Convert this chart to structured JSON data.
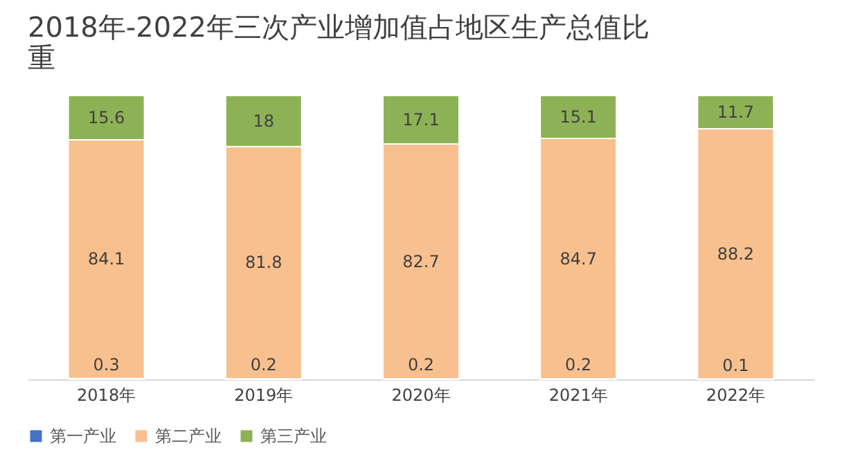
{
  "chart_data": {
    "type": "bar",
    "title": "2018年-2022年三次产业增加值占地区生产总值比重",
    "categories": [
      "2018年",
      "2019年",
      "2020年",
      "2021年",
      "2022年"
    ],
    "series": [
      {
        "name": "第一产业",
        "color": "#4472c4",
        "values": [
          0.3,
          0.2,
          0.2,
          0.2,
          0.1
        ]
      },
      {
        "name": "第二产业",
        "color": "#f8c08e",
        "values": [
          84.1,
          81.8,
          82.7,
          84.7,
          88.2
        ]
      },
      {
        "name": "第三产业",
        "color": "#8db255",
        "values": [
          15.6,
          18,
          17.1,
          15.1,
          11.7
        ]
      }
    ],
    "stacked": true,
    "data_labels": true,
    "legend": "bottom",
    "tick_labels": "x",
    "ylim": [
      0,
      100
    ]
  }
}
